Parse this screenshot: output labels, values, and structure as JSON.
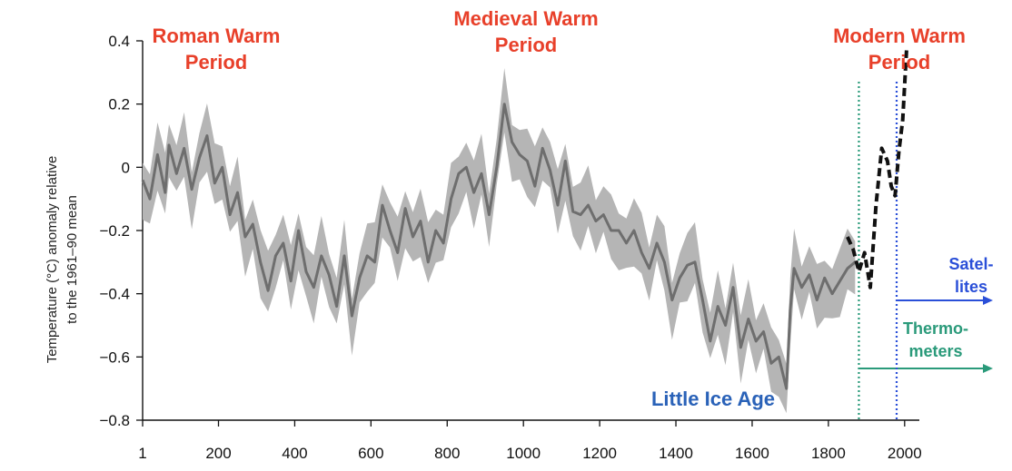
{
  "chart_data": {
    "type": "line",
    "title": "",
    "ylabel_lines": [
      "Temperature (°C) anomaly relative",
      "to the 1961–90 mean"
    ],
    "xlabel": "",
    "xlim": [
      1,
      2010
    ],
    "ylim": [
      -0.8,
      0.4
    ],
    "x_ticks": [
      1,
      200,
      400,
      600,
      800,
      1000,
      1200,
      1400,
      1600,
      1800,
      2000
    ],
    "y_ticks": [
      0.4,
      0.2,
      0,
      -0.2,
      -0.4,
      -0.6,
      -0.8
    ],
    "y_tick_labels": [
      "0.4",
      "0.2",
      "0",
      "−0.2",
      "−0.4",
      "−0.6",
      "−0.8"
    ],
    "series": [
      {
        "kind": "reconstruction",
        "color": "#6e6e6e",
        "band_color": "#b5b5b5",
        "x": [
          1,
          20,
          40,
          60,
          70,
          90,
          110,
          130,
          150,
          170,
          190,
          210,
          230,
          250,
          270,
          290,
          310,
          330,
          350,
          370,
          390,
          410,
          430,
          450,
          470,
          490,
          510,
          530,
          550,
          570,
          590,
          610,
          630,
          650,
          670,
          690,
          710,
          730,
          750,
          770,
          790,
          810,
          830,
          850,
          870,
          890,
          910,
          930,
          950,
          970,
          990,
          1010,
          1030,
          1050,
          1070,
          1090,
          1110,
          1130,
          1150,
          1170,
          1190,
          1210,
          1230,
          1250,
          1270,
          1290,
          1310,
          1330,
          1350,
          1370,
          1390,
          1410,
          1430,
          1450,
          1470,
          1490,
          1510,
          1530,
          1550,
          1570,
          1590,
          1610,
          1630,
          1650,
          1670,
          1690,
          1700,
          1710,
          1730,
          1750,
          1770,
          1790,
          1810,
          1830,
          1850,
          1870
        ],
        "y": [
          -0.04,
          -0.1,
          0.04,
          -0.08,
          0.07,
          -0.02,
          0.06,
          -0.07,
          0.03,
          0.1,
          -0.05,
          0.0,
          -0.15,
          -0.08,
          -0.22,
          -0.18,
          -0.3,
          -0.39,
          -0.28,
          -0.24,
          -0.36,
          -0.2,
          -0.33,
          -0.38,
          -0.28,
          -0.34,
          -0.44,
          -0.28,
          -0.47,
          -0.35,
          -0.28,
          -0.3,
          -0.12,
          -0.2,
          -0.27,
          -0.13,
          -0.22,
          -0.17,
          -0.3,
          -0.2,
          -0.24,
          -0.1,
          -0.02,
          0.0,
          -0.08,
          -0.02,
          -0.15,
          0.0,
          0.2,
          0.08,
          0.04,
          0.02,
          -0.06,
          0.06,
          -0.01,
          -0.12,
          0.02,
          -0.14,
          -0.15,
          -0.12,
          -0.17,
          -0.15,
          -0.2,
          -0.2,
          -0.24,
          -0.2,
          -0.27,
          -0.32,
          -0.24,
          -0.3,
          -0.42,
          -0.35,
          -0.31,
          -0.3,
          -0.42,
          -0.55,
          -0.44,
          -0.5,
          -0.38,
          -0.57,
          -0.48,
          -0.55,
          -0.52,
          -0.62,
          -0.6,
          -0.7,
          -0.45,
          -0.32,
          -0.38,
          -0.34,
          -0.42,
          -0.35,
          -0.4,
          -0.36,
          -0.32,
          -0.3
        ],
        "band_half_width": 0.09
      },
      {
        "kind": "instrumental",
        "color": "#111111",
        "style": "dashed",
        "x": [
          1850,
          1865,
          1880,
          1895,
          1910,
          1925,
          1940,
          1955,
          1965,
          1975,
          1985,
          1995,
          2005
        ],
        "y": [
          -0.22,
          -0.26,
          -0.33,
          -0.27,
          -0.38,
          -0.12,
          0.06,
          0.02,
          -0.06,
          -0.09,
          0.05,
          0.15,
          0.37
        ]
      }
    ],
    "annotations": [
      {
        "text_lines": [
          "Roman Warm",
          "Period"
        ],
        "color": "#e8402a",
        "x": 160
      },
      {
        "text_lines": [
          "Medieval Warm",
          "Period"
        ],
        "color": "#e8402a",
        "x": 950
      },
      {
        "text_lines": [
          "Modern Warm",
          "Period"
        ],
        "color": "#e8402a",
        "x": 1960
      },
      {
        "text_lines": [
          "Little Ice Age"
        ],
        "color": "#2a62b8",
        "x": 1470
      }
    ],
    "instrument_markers": [
      {
        "text_lines": [
          "Thermo-",
          "meters"
        ],
        "start_year": 1880,
        "color": "#2a9a7a",
        "line_style": "dotted"
      },
      {
        "text_lines": [
          "Satel-",
          "lites"
        ],
        "start_year": 1979,
        "color": "#2a4fd8",
        "line_style": "dotted"
      }
    ]
  }
}
